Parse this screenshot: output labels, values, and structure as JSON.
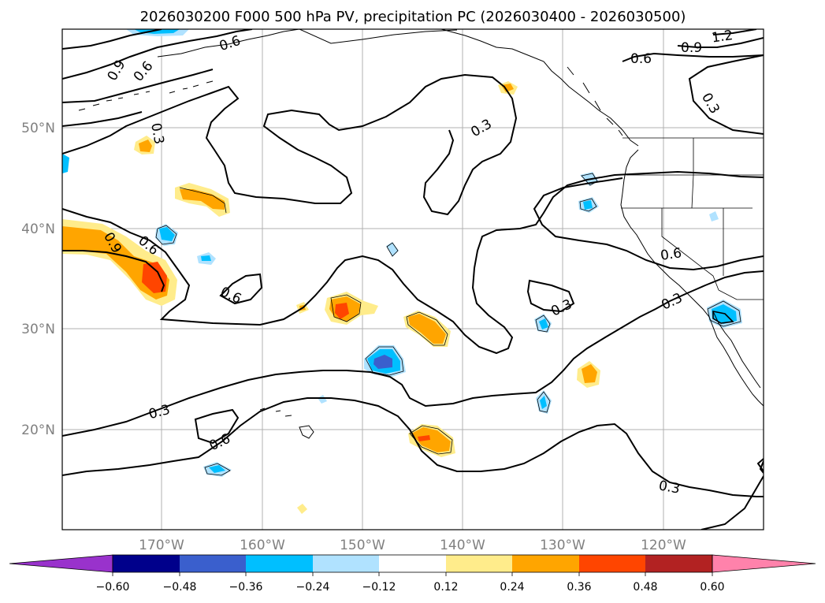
{
  "title": "2026030200 F000 500 hPa PV, precipitation PC (2026030400 - 2026030500)",
  "map": {
    "lat_labels": [
      "50°N",
      "40°N",
      "30°N",
      "20°N"
    ],
    "lon_labels": [
      "170°W",
      "160°W",
      "150°W",
      "140°W",
      "130°W",
      "120°W"
    ],
    "contour_labels": [
      "0.6",
      "0.9",
      "1.2",
      "0.6",
      "0.9",
      "0.6",
      "0.9",
      "0.3",
      "0.3",
      "0.3",
      "0.9",
      "0.6",
      "0.6",
      "0.6",
      "0.3",
      "0.3",
      "0.3",
      "0.3",
      "0.6"
    ]
  },
  "colorbar": {
    "tick_labels": [
      "−0.60",
      "−0.48",
      "−0.36",
      "−0.24",
      "−0.12",
      "0.12",
      "0.24",
      "0.36",
      "0.48",
      "0.60"
    ],
    "colors": [
      "#9932cc",
      "#00008b",
      "#3a5fcd",
      "#00bfff",
      "#b0e2ff",
      "#ffffff",
      "#ffec8b",
      "#ffa500",
      "#ff4500",
      "#b22222",
      "#ff82ab"
    ]
  }
}
